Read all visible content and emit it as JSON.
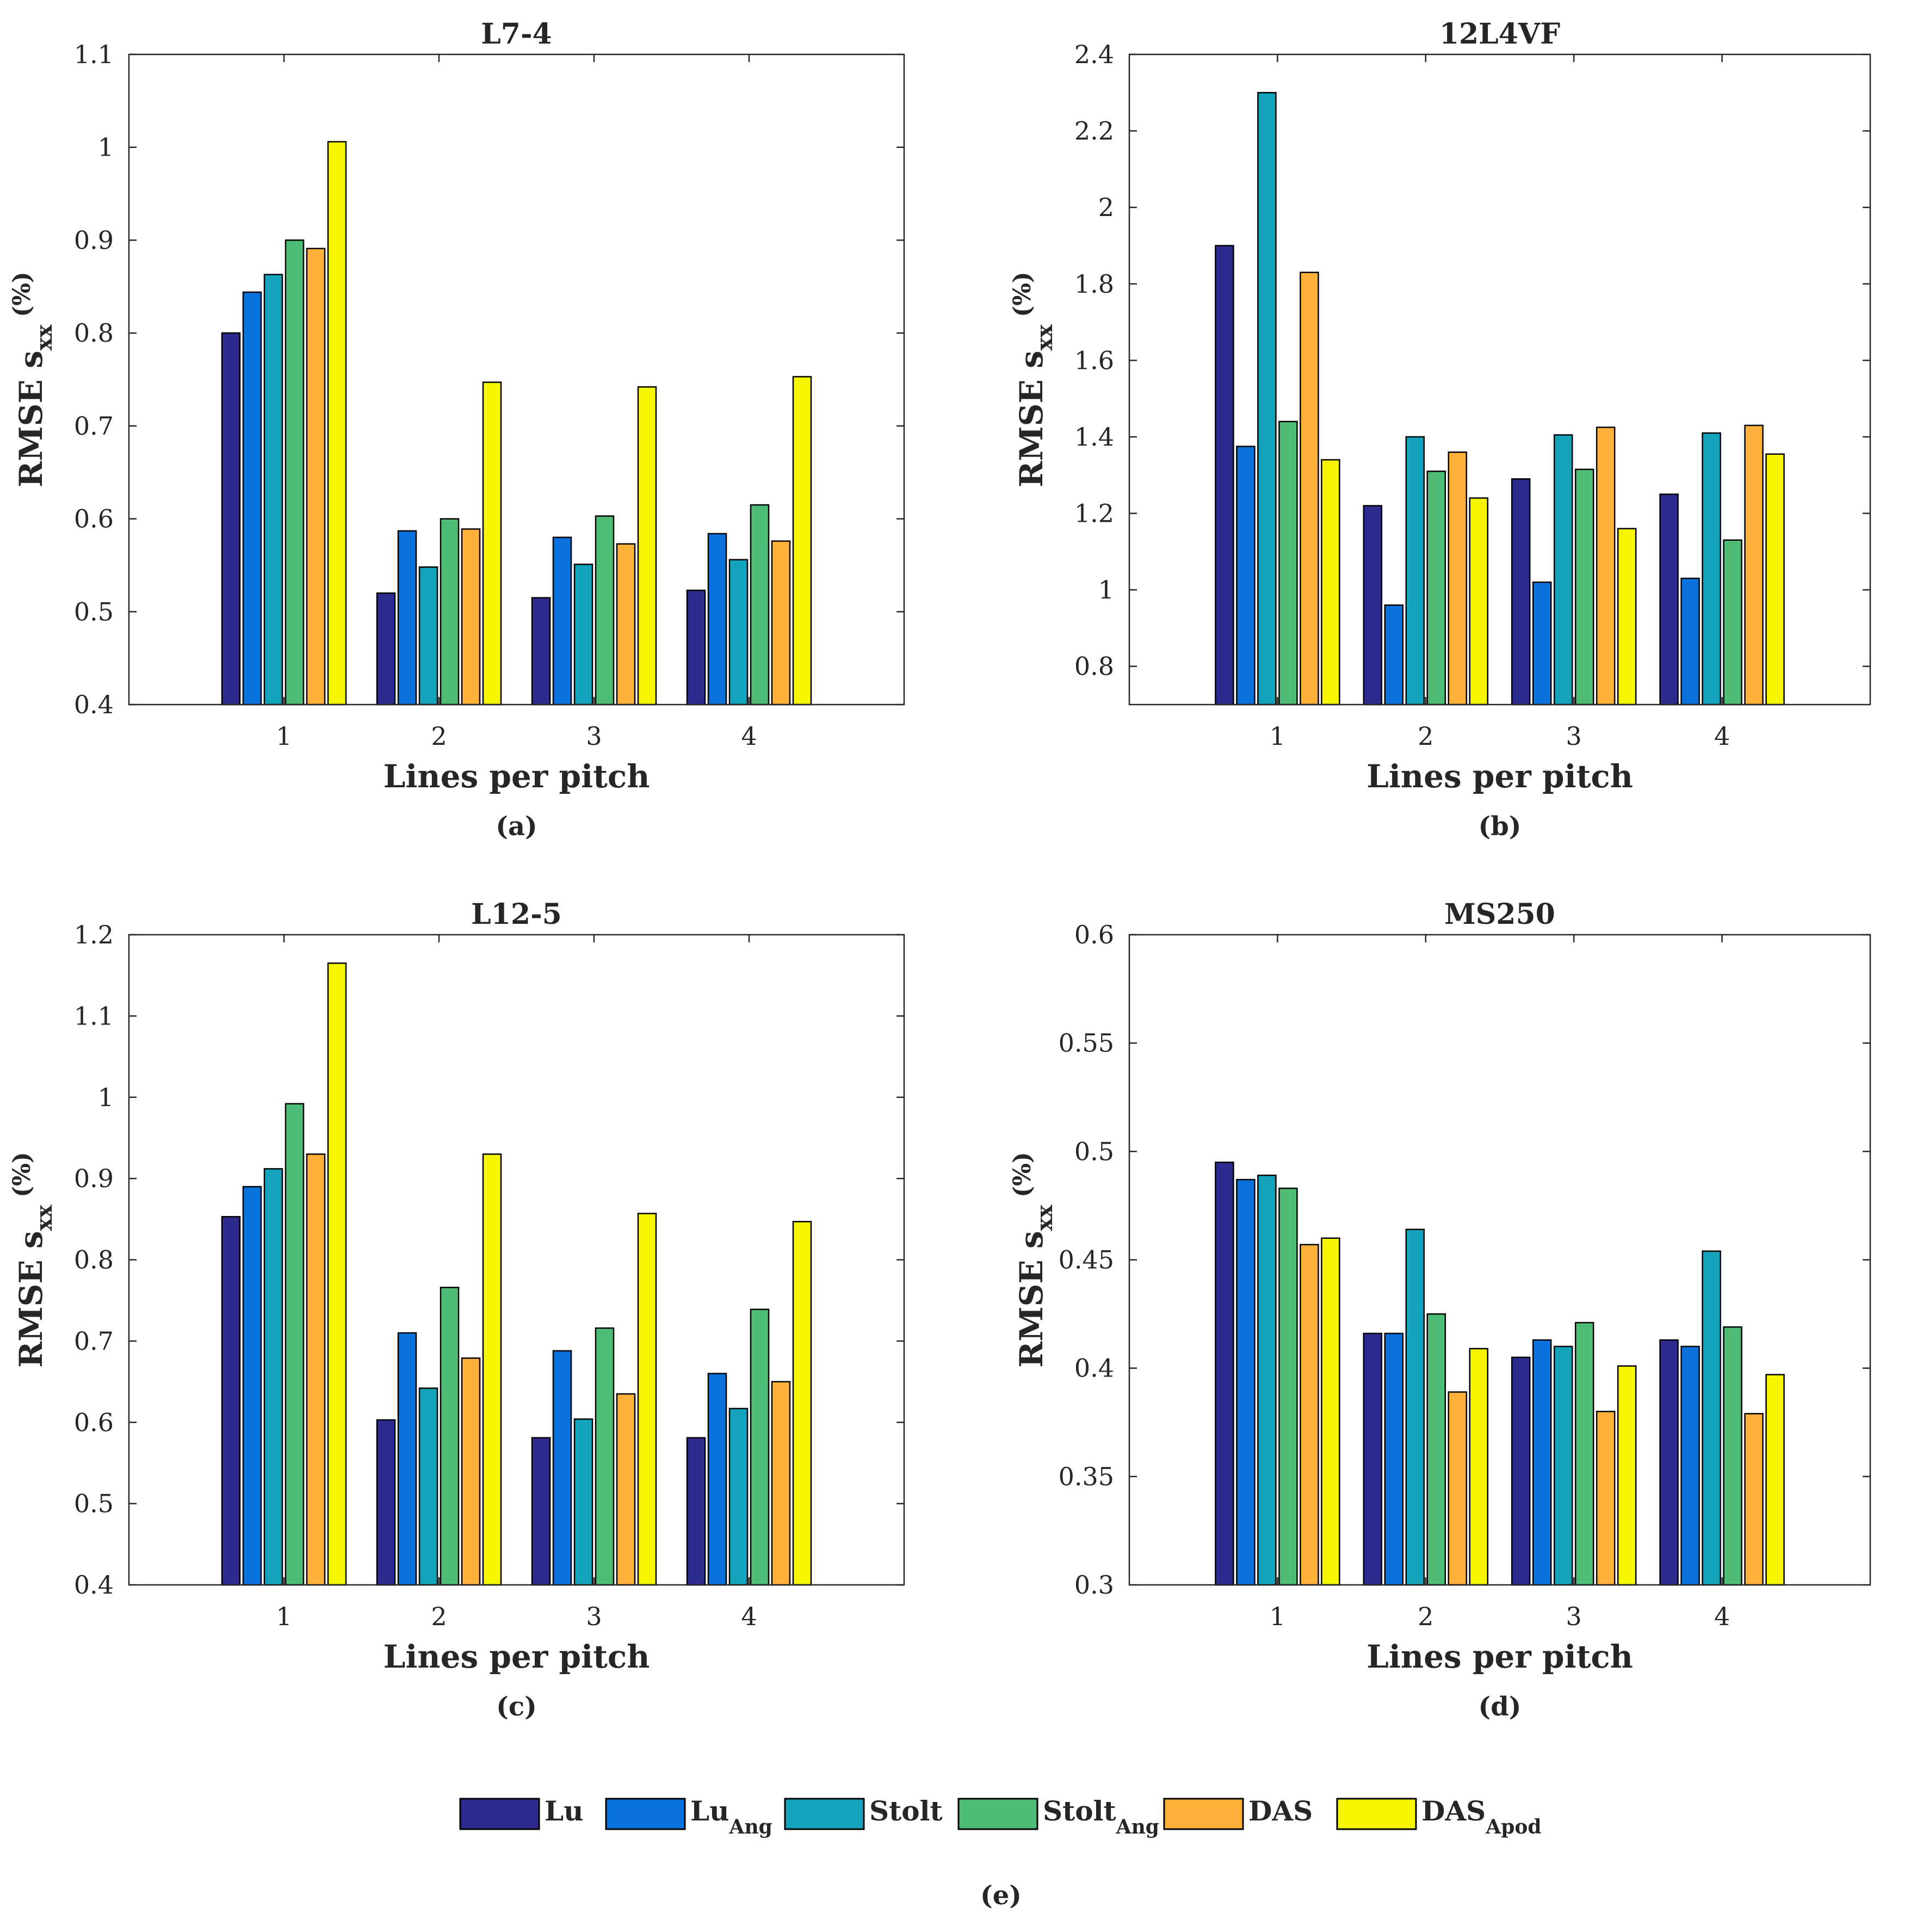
{
  "colors": {
    "series": [
      "#2e2b8f",
      "#0a72dd",
      "#13a4bb",
      "#4ebc74",
      "#ffb13a",
      "#f6f600"
    ],
    "axis": "#262626",
    "bar_edge": "#000000"
  },
  "legend": {
    "entries": [
      {
        "base": "Lu",
        "sub": ""
      },
      {
        "base": "Lu",
        "sub": "Ang"
      },
      {
        "base": "Stolt",
        "sub": ""
      },
      {
        "base": "Stolt",
        "sub": "Ang"
      },
      {
        "base": "DAS",
        "sub": ""
      },
      {
        "base": "DAS",
        "sub": "Apod"
      }
    ],
    "label": "(e)"
  },
  "chart_data": [
    {
      "type": "bar",
      "title": "L7-4",
      "panel_label": "(a)",
      "xlabel": "Lines per pitch",
      "ylabel_main": "RMSE s",
      "ylabel_sub": "xx",
      "ylabel_unit": "(%)",
      "categories": [
        "1",
        "2",
        "3",
        "4"
      ],
      "ylim": [
        0.4,
        1.1
      ],
      "yticks": [
        "0.4",
        "0.5",
        "0.6",
        "0.7",
        "0.8",
        "0.9",
        "1",
        "1.1"
      ],
      "series": [
        {
          "name": "Lu",
          "values": [
            0.8,
            0.52,
            0.515,
            0.523
          ]
        },
        {
          "name": "Lu_Ang",
          "values": [
            0.844,
            0.587,
            0.58,
            0.584
          ]
        },
        {
          "name": "Stolt",
          "values": [
            0.863,
            0.548,
            0.551,
            0.556
          ]
        },
        {
          "name": "Stolt_Ang",
          "values": [
            0.9,
            0.6,
            0.603,
            0.615
          ]
        },
        {
          "name": "DAS",
          "values": [
            0.891,
            0.589,
            0.573,
            0.576
          ]
        },
        {
          "name": "DAS_Apod",
          "values": [
            1.006,
            0.747,
            0.742,
            0.753
          ]
        }
      ]
    },
    {
      "type": "bar",
      "title": "12L4VF",
      "panel_label": "(b)",
      "xlabel": "Lines per pitch",
      "ylabel_main": "RMSE s",
      "ylabel_sub": "xx",
      "ylabel_unit": "(%)",
      "categories": [
        "1",
        "2",
        "3",
        "4"
      ],
      "ylim": [
        0.7,
        2.4
      ],
      "yticks": [
        "0.8",
        "1",
        "1.2",
        "1.4",
        "1.6",
        "1.8",
        "2",
        "2.2",
        "2.4"
      ],
      "series": [
        {
          "name": "Lu",
          "values": [
            1.9,
            1.22,
            1.29,
            1.25
          ]
        },
        {
          "name": "Lu_Ang",
          "values": [
            1.375,
            0.96,
            1.02,
            1.03
          ]
        },
        {
          "name": "Stolt",
          "values": [
            2.3,
            1.4,
            1.405,
            1.41
          ]
        },
        {
          "name": "Stolt_Ang",
          "values": [
            1.44,
            1.31,
            1.315,
            1.13
          ]
        },
        {
          "name": "DAS",
          "values": [
            1.83,
            1.36,
            1.425,
            1.43
          ]
        },
        {
          "name": "DAS_Apod",
          "values": [
            1.34,
            1.24,
            1.16,
            1.355
          ]
        }
      ]
    },
    {
      "type": "bar",
      "title": "L12-5",
      "panel_label": "(c)",
      "xlabel": "Lines per pitch",
      "ylabel_main": "RMSE s",
      "ylabel_sub": "xx",
      "ylabel_unit": "(%)",
      "categories": [
        "1",
        "2",
        "3",
        "4"
      ],
      "ylim": [
        0.4,
        1.2
      ],
      "yticks": [
        "0.4",
        "0.5",
        "0.6",
        "0.7",
        "0.8",
        "0.9",
        "1",
        "1.1",
        "1.2"
      ],
      "series": [
        {
          "name": "Lu",
          "values": [
            0.853,
            0.603,
            0.581,
            0.581
          ]
        },
        {
          "name": "Lu_Ang",
          "values": [
            0.89,
            0.71,
            0.688,
            0.66
          ]
        },
        {
          "name": "Stolt",
          "values": [
            0.912,
            0.642,
            0.604,
            0.617
          ]
        },
        {
          "name": "Stolt_Ang",
          "values": [
            0.992,
            0.766,
            0.716,
            0.739
          ]
        },
        {
          "name": "DAS",
          "values": [
            0.93,
            0.679,
            0.635,
            0.65
          ]
        },
        {
          "name": "DAS_Apod",
          "values": [
            1.165,
            0.93,
            0.857,
            0.847
          ]
        }
      ]
    },
    {
      "type": "bar",
      "title": "MS250",
      "panel_label": "(d)",
      "xlabel": "Lines per pitch",
      "ylabel_main": "RMSE s",
      "ylabel_sub": "xx",
      "ylabel_unit": "(%)",
      "categories": [
        "1",
        "2",
        "3",
        "4"
      ],
      "ylim": [
        0.3,
        0.6
      ],
      "yticks": [
        "0.3",
        "0.35",
        "0.4",
        "0.45",
        "0.5",
        "0.55",
        "0.6"
      ],
      "series": [
        {
          "name": "Lu",
          "values": [
            0.495,
            0.416,
            0.405,
            0.413
          ]
        },
        {
          "name": "Lu_Ang",
          "values": [
            0.487,
            0.416,
            0.413,
            0.41
          ]
        },
        {
          "name": "Stolt",
          "values": [
            0.489,
            0.464,
            0.41,
            0.454
          ]
        },
        {
          "name": "Stolt_Ang",
          "values": [
            0.483,
            0.425,
            0.421,
            0.419
          ]
        },
        {
          "name": "DAS",
          "values": [
            0.457,
            0.389,
            0.38,
            0.379
          ]
        },
        {
          "name": "DAS_Apod",
          "values": [
            0.46,
            0.409,
            0.401,
            0.397
          ]
        }
      ]
    }
  ]
}
